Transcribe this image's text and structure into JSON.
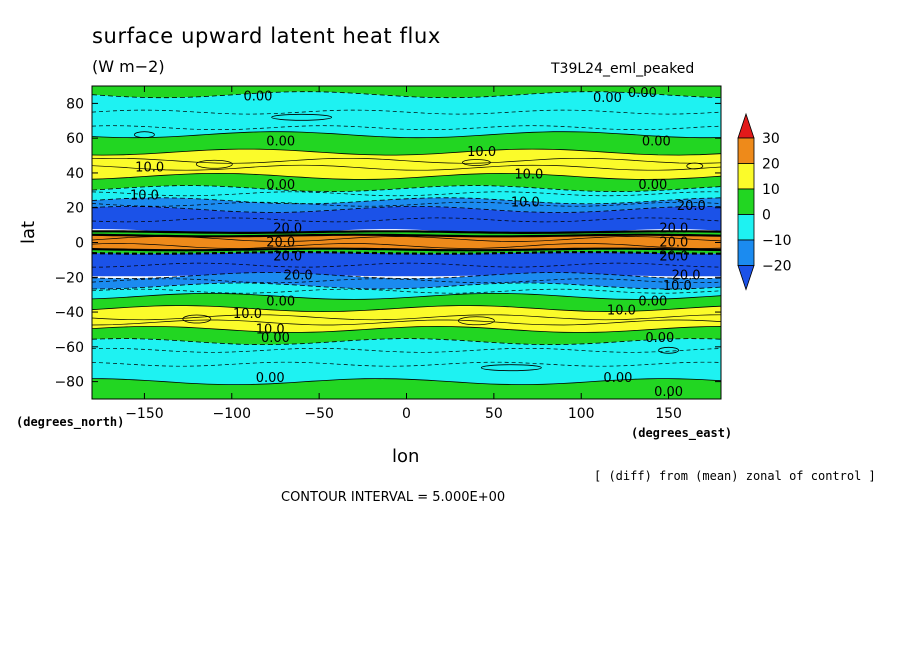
{
  "chart_data": {
    "type": "contour",
    "title": "surface upward latent heat flux",
    "units": "(W m−2)",
    "run_id": "T39L24_eml_peaked",
    "xlabel": "lon",
    "ylabel": "lat",
    "x_units": "(degrees_east)",
    "y_units": "(degrees_north)",
    "xlim": [
      -180,
      180
    ],
    "ylim": [
      -90,
      90
    ],
    "x_ticks": [
      -150,
      -100,
      -50,
      0,
      50,
      100,
      150
    ],
    "y_ticks": [
      80,
      60,
      40,
      20,
      0,
      -20,
      -40,
      -60,
      -80
    ],
    "note": "[ (diff) from (mean) zonal of control ]",
    "contour_interval": "CONTOUR INTERVAL = 5.000E+00",
    "colorbar": {
      "labels": [
        "30",
        "20",
        "10",
        "0",
        "−10",
        "−20"
      ],
      "levels": [
        30,
        20,
        10,
        0,
        -10,
        -20
      ],
      "colors": {
        "above_30": "#e21a1a",
        "20_30": "#ee8a1a",
        "10_20": "#fbfb2a",
        "0_10": "#22d622",
        "-10_0": "#1ef2f2",
        "-20_-10": "#1b8bf0",
        "below_-20": "#1b52e8"
      }
    },
    "zonal_bands": [
      {
        "lat_from": 90,
        "lat_to": 85,
        "value_range": "0 to 10"
      },
      {
        "lat_from": 85,
        "lat_to": 62,
        "value_range": "-10 to 0"
      },
      {
        "lat_from": 62,
        "lat_to": 52,
        "value_range": "0 to 10"
      },
      {
        "lat_from": 52,
        "lat_to": 38,
        "value_range": "10 to 20"
      },
      {
        "lat_from": 38,
        "lat_to": 31,
        "value_range": "0 to 10"
      },
      {
        "lat_from": 31,
        "lat_to": 24,
        "value_range": "-10 to 0"
      },
      {
        "lat_from": 24,
        "lat_to": 19,
        "value_range": "-20 to -10"
      },
      {
        "lat_from": 19,
        "lat_to": 6,
        "value_range": "below -20"
      },
      {
        "lat_from": 6,
        "lat_to": 4,
        "value_range": "0 to 10"
      },
      {
        "lat_from": 4,
        "lat_to": -4,
        "value_range": "20 to 30"
      },
      {
        "lat_from": -4,
        "lat_to": -6,
        "value_range": "0 to 10"
      },
      {
        "lat_from": -6,
        "lat_to": -19,
        "value_range": "below -20"
      },
      {
        "lat_from": -19,
        "lat_to": -25,
        "value_range": "-20 to -10"
      },
      {
        "lat_from": -25,
        "lat_to": -31,
        "value_range": "-10 to 0"
      },
      {
        "lat_from": -31,
        "lat_to": -38,
        "value_range": "0 to 10"
      },
      {
        "lat_from": -38,
        "lat_to": -50,
        "value_range": "10 to 20"
      },
      {
        "lat_from": -50,
        "lat_to": -57,
        "value_range": "0 to 10"
      },
      {
        "lat_from": -57,
        "lat_to": -80,
        "value_range": "-10 to 0"
      },
      {
        "lat_from": -80,
        "lat_to": -90,
        "value_range": "0 to 10"
      }
    ],
    "contour_labels": [
      {
        "text": "0.00",
        "lon": -85,
        "lat": 84
      },
      {
        "text": "0.00",
        "lon": 115,
        "lat": 83
      },
      {
        "text": "0.00",
        "lon": 135,
        "lat": 86
      },
      {
        "text": "0.00",
        "lon": -72,
        "lat": 58
      },
      {
        "text": "0.00",
        "lon": 143,
        "lat": 58
      },
      {
        "text": "10.0",
        "lon": 43,
        "lat": 52
      },
      {
        "text": "10.0",
        "lon": -147,
        "lat": 43
      },
      {
        "text": "10.0",
        "lon": 70,
        "lat": 39
      },
      {
        "text": "0.00",
        "lon": -72,
        "lat": 33
      },
      {
        "text": "0.00",
        "lon": 141,
        "lat": 33
      },
      {
        "text": "10.0",
        "lon": -150,
        "lat": 27
      },
      {
        "text": "10.0",
        "lon": 68,
        "lat": 23
      },
      {
        "text": "20.0",
        "lon": 163,
        "lat": 21
      },
      {
        "text": "20.0",
        "lon": -68,
        "lat": 8
      },
      {
        "text": "20.0",
        "lon": 153,
        "lat": 8
      },
      {
        "text": "20.0",
        "lon": -72,
        "lat": 0
      },
      {
        "text": "20.0",
        "lon": 153,
        "lat": 0
      },
      {
        "text": "20.0",
        "lon": -68,
        "lat": -8
      },
      {
        "text": "20.0",
        "lon": 153,
        "lat": -8
      },
      {
        "text": "20.0",
        "lon": -62,
        "lat": -19
      },
      {
        "text": "20.0",
        "lon": 160,
        "lat": -19
      },
      {
        "text": "10.0",
        "lon": 155,
        "lat": -25
      },
      {
        "text": "0.00",
        "lon": -72,
        "lat": -34
      },
      {
        "text": "0.00",
        "lon": 141,
        "lat": -34
      },
      {
        "text": "10.0",
        "lon": -91,
        "lat": -41
      },
      {
        "text": "10.0",
        "lon": 123,
        "lat": -39
      },
      {
        "text": "10.0",
        "lon": -78,
        "lat": -50
      },
      {
        "text": "0.00",
        "lon": -75,
        "lat": -55
      },
      {
        "text": "0.00",
        "lon": 145,
        "lat": -55
      },
      {
        "text": "0.00",
        "lon": -78,
        "lat": -78
      },
      {
        "text": "0.00",
        "lon": 121,
        "lat": -78
      },
      {
        "text": "0.00",
        "lon": 150,
        "lat": -86
      }
    ]
  }
}
